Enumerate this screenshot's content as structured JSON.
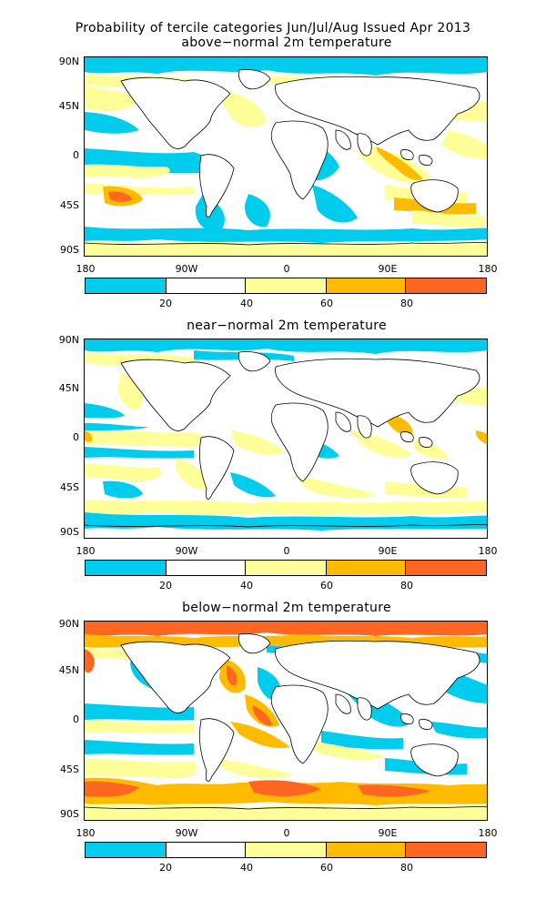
{
  "header": {
    "title_line1": "Probability of tercile categories Jun/Jul/Aug Issued Apr 2013"
  },
  "lat_labels": [
    "90N",
    "45N",
    "0",
    "45S",
    "90S"
  ],
  "lon_labels": [
    "180",
    "90W",
    "0",
    "90E",
    "180"
  ],
  "colorbar": {
    "labels": [
      "20",
      "40",
      "60",
      "80"
    ],
    "colors": [
      "#00ccee",
      "#ffffff",
      "#ffff99",
      "#ffbb00",
      "#ff6622"
    ]
  },
  "panels": [
    {
      "id": "above",
      "title": "above−normal 2m temperature"
    },
    {
      "id": "near",
      "title": "near−normal 2m temperature"
    },
    {
      "id": "below",
      "title": "below−normal 2m temperature"
    }
  ]
}
